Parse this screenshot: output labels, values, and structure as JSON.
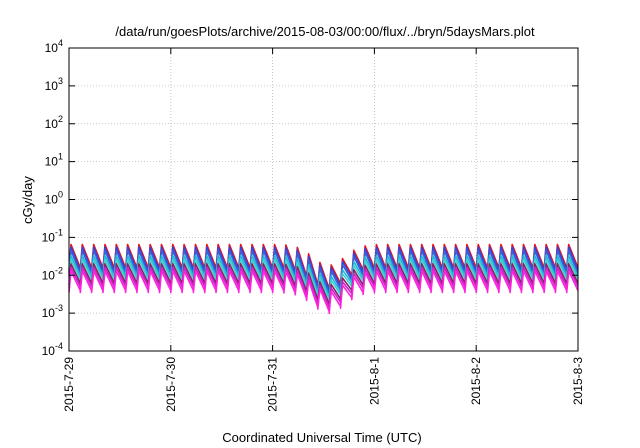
{
  "chart_data": {
    "type": "line",
    "title": "/data/run/goesPlots/archive/2015-08-03/00:00/flux/../bryn/5daysMars.plot",
    "xlabel": "Coordinated Universal Time (UTC)",
    "ylabel": "cGy/day",
    "yscale": "log",
    "ylim": [
      0.0001,
      10000
    ],
    "xlim": [
      "2015-07-29",
      "2015-08-03"
    ],
    "grid": true,
    "y_ticks": [
      {
        "base": "10",
        "exp": "-4"
      },
      {
        "base": "10",
        "exp": "-3"
      },
      {
        "base": "10",
        "exp": "-2"
      },
      {
        "base": "10",
        "exp": "-1"
      },
      {
        "base": "10",
        "exp": "0"
      },
      {
        "base": "10",
        "exp": "1"
      },
      {
        "base": "10",
        "exp": "2"
      },
      {
        "base": "10",
        "exp": "3"
      },
      {
        "base": "10",
        "exp": "4"
      }
    ],
    "x_ticks": [
      "2015-7-29",
      "2015-7-30",
      "2015-7-31",
      "2015-8-1",
      "2015-8-2",
      "2015-8-3"
    ],
    "cycles_per_day": 9,
    "dip": {
      "center_day": 2.55,
      "width_day": 0.22,
      "depth_decades": 0.55
    },
    "series": [
      {
        "color": "#e8141c",
        "peak": 0.065,
        "trough": 0.014
      },
      {
        "color": "#3344dd",
        "peak": 0.055,
        "trough": 0.012
      },
      {
        "color": "#3a5fd8",
        "peak": 0.045,
        "trough": 0.01
      },
      {
        "color": "#22b8d8",
        "peak": 0.033,
        "trough": 0.0085
      },
      {
        "color": "#40d0d0",
        "peak": 0.026,
        "trough": 0.007
      },
      {
        "color": "#882266",
        "peak": 0.02,
        "trough": 0.0055
      },
      {
        "color": "#cc22cc",
        "peak": 0.016,
        "trough": 0.0045
      },
      {
        "color": "#ff22dd",
        "peak": 0.013,
        "trough": 0.0035
      }
    ]
  }
}
